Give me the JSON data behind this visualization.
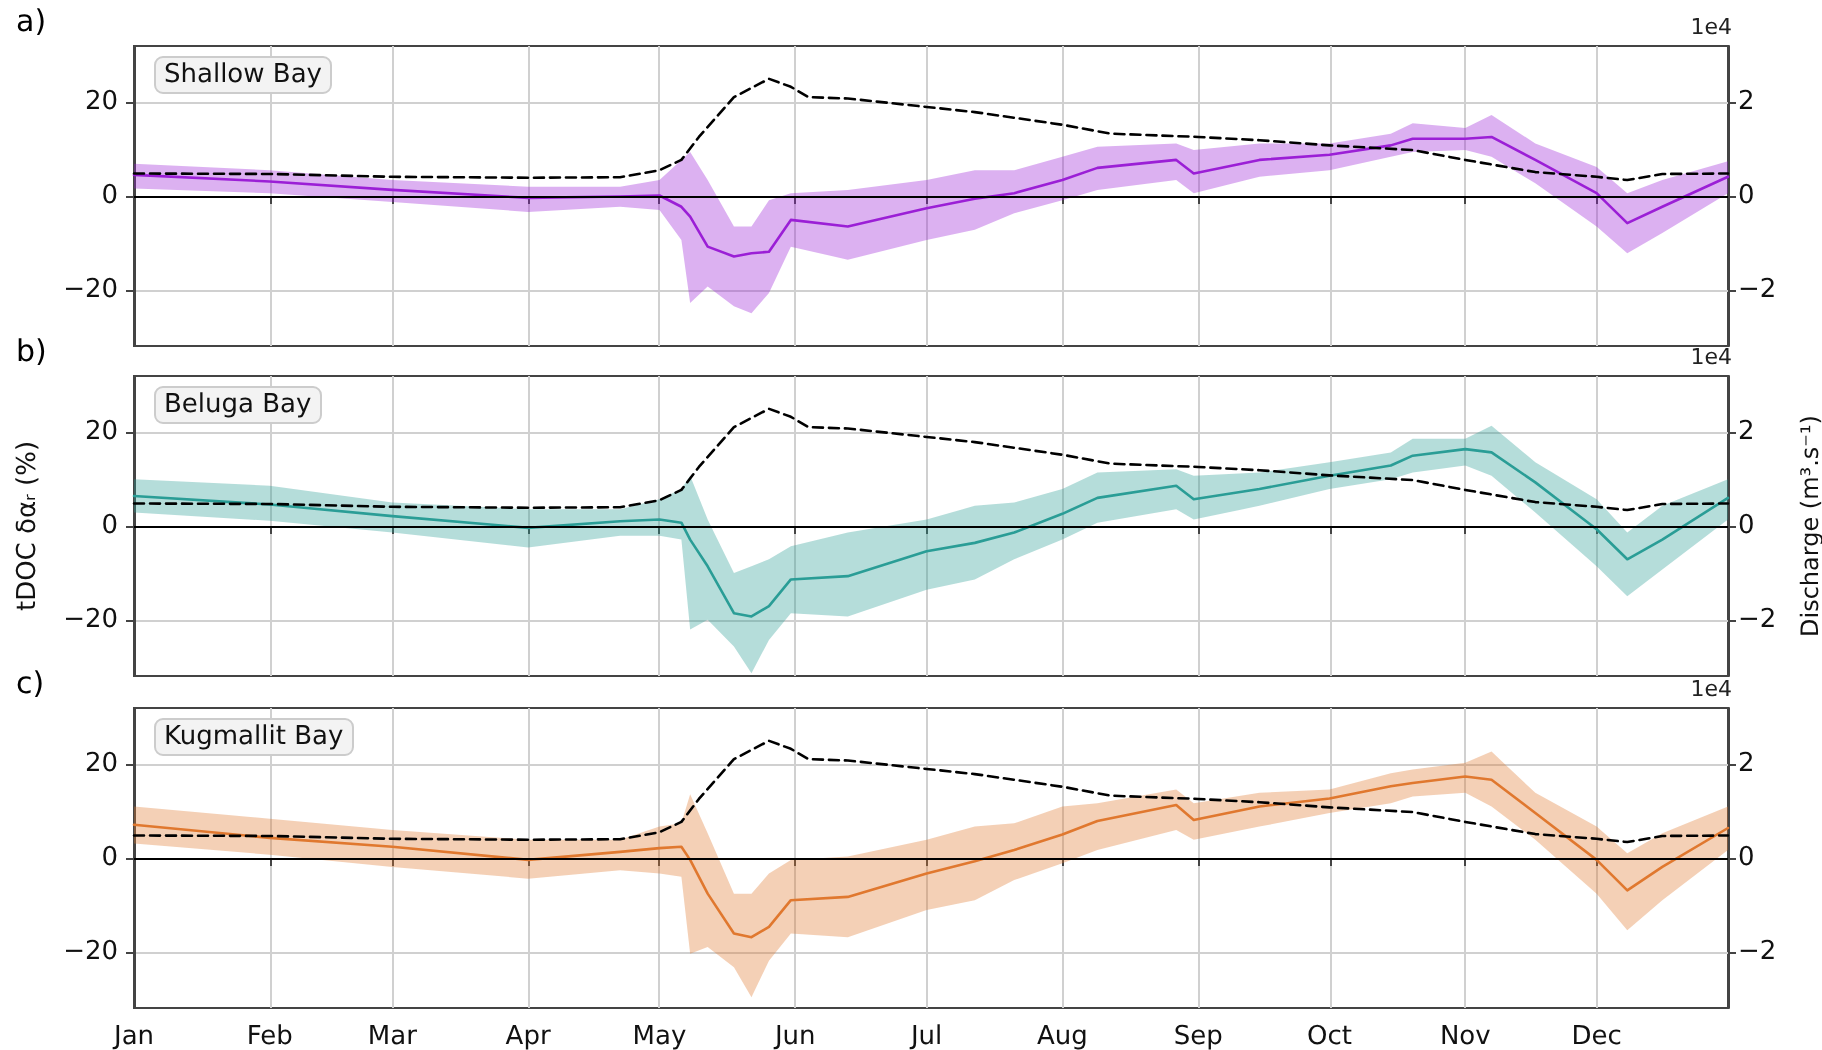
{
  "chart_data": [
    {
      "type": "line",
      "title": "Shallow Bay",
      "annotations": [
        "a)",
        "1e4"
      ],
      "xlim": [
        "--01-01",
        "--12-31"
      ],
      "xticks": [
        {
          "value": "--01-01",
          "label": "Jan"
        },
        {
          "value": "--02-01",
          "label": "Feb"
        },
        {
          "value": "--03-01",
          "label": "Mar"
        },
        {
          "value": "--04-01",
          "label": "Apr"
        },
        {
          "value": "--05-01",
          "label": "May"
        },
        {
          "value": "--06-01",
          "label": "Jun"
        },
        {
          "value": "--07-01",
          "label": "Jul"
        },
        {
          "value": "--08-01",
          "label": "Aug"
        },
        {
          "value": "--09-01",
          "label": "Sep"
        },
        {
          "value": "--10-01",
          "label": "Oct"
        },
        {
          "value": "--11-01",
          "label": "Nov"
        },
        {
          "value": "--12-01",
          "label": "Dec"
        }
      ],
      "ylim": [
        -32,
        32
      ],
      "yticks": [
        -20,
        0,
        20
      ],
      "y2lim": [
        -3.2,
        3.2
      ],
      "y2ticks": [
        -2,
        0,
        2
      ],
      "grid": true,
      "marker": "none",
      "tick_labels": "y",
      "ref_lines": [
        {
          "axis": "y",
          "value": 0,
          "color": "#000000"
        }
      ],
      "x": [
        "--01-01",
        "--02-01",
        "--03-01",
        "--04-01",
        "--04-22",
        "--05-01",
        "--05-06",
        "--05-08",
        "--05-12",
        "--05-18",
        "--05-22",
        "--05-26",
        "--05-31",
        "--06-13",
        "--07-01",
        "--07-12",
        "--07-21",
        "--08-01",
        "--08-09",
        "--08-27",
        "--08-31",
        "--09-15",
        "--10-01",
        "--10-15",
        "--10-20",
        "--11-01",
        "--11-07",
        "--11-17",
        "--12-01",
        "--12-08",
        "--12-16",
        "--12-31"
      ],
      "series": [
        {
          "color": "#9b1fd6",
          "line_style": "solid",
          "values": [
            4.5,
            3.1,
            1.3,
            -0.4,
            -0.1,
            0.1,
            -2.3,
            -4.4,
            -10.8,
            -12.9,
            -12.2,
            -11.9,
            -5.1,
            -6.5,
            -2.6,
            -0.6,
            0.6,
            3.4,
            6.0,
            7.7,
            4.8,
            7.7,
            8.8,
            10.8,
            12.2,
            12.2,
            12.6,
            7.7,
            0.6,
            -5.8,
            -2.3,
            4.1
          ],
          "upper": [
            6.9,
            5.5,
            3.4,
            2.0,
            2.0,
            3.4,
            7.7,
            9.4,
            3.4,
            -6.5,
            -6.5,
            -0.9,
            0.6,
            1.3,
            3.4,
            5.5,
            5.5,
            8.4,
            10.5,
            11.2,
            9.8,
            11.2,
            11.2,
            13.3,
            15.5,
            14.5,
            17.3,
            11.2,
            6.2,
            0.6,
            3.4,
            7.4
          ],
          "lower": [
            1.6,
            0.6,
            -1.3,
            -3.4,
            -2.3,
            -3.0,
            -9.4,
            -22.8,
            -19.3,
            -23.5,
            -25.0,
            -20.7,
            -10.8,
            -13.6,
            -9.4,
            -7.2,
            -3.7,
            -0.9,
            1.3,
            3.4,
            0.6,
            4.1,
            5.5,
            8.4,
            9.4,
            9.8,
            8.4,
            2.7,
            -6.5,
            -12.2,
            -7.9,
            0.6
          ]
        },
        {
          "color": "#000000",
          "line_style": "dashed",
          "axis": "y2",
          "x": [
            "--01-01",
            "--02-01",
            "--03-01",
            "--04-01",
            "--04-22",
            "--05-01",
            "--05-06",
            "--05-10",
            "--05-18",
            "--05-26",
            "--05-31",
            "--06-04",
            "--06-13",
            "--07-01",
            "--07-12",
            "--08-01",
            "--08-12",
            "--09-01",
            "--09-15",
            "--10-01",
            "--10-20",
            "--11-01",
            "--11-17",
            "--12-01",
            "--12-08",
            "--12-16",
            "--12-31"
          ],
          "values": [
            0.48,
            0.47,
            0.41,
            0.39,
            0.4,
            0.55,
            0.77,
            1.26,
            2.11,
            2.5,
            2.33,
            2.11,
            2.08,
            1.9,
            1.79,
            1.52,
            1.33,
            1.26,
            1.19,
            1.08,
            0.98,
            0.77,
            0.51,
            0.41,
            0.34,
            0.47,
            0.48
          ]
        }
      ]
    },
    {
      "type": "line",
      "title": "Beluga Bay",
      "ylabel": "tDOC δαᵣ (%)",
      "y2label": "Discharge (m³.s⁻¹)",
      "annotations": [
        "b)",
        "1e4"
      ],
      "xlim": [
        "--01-01",
        "--12-31"
      ],
      "xticks": [
        {
          "value": "--01-01",
          "label": "Jan"
        },
        {
          "value": "--02-01",
          "label": "Feb"
        },
        {
          "value": "--03-01",
          "label": "Mar"
        },
        {
          "value": "--04-01",
          "label": "Apr"
        },
        {
          "value": "--05-01",
          "label": "May"
        },
        {
          "value": "--06-01",
          "label": "Jun"
        },
        {
          "value": "--07-01",
          "label": "Jul"
        },
        {
          "value": "--08-01",
          "label": "Aug"
        },
        {
          "value": "--09-01",
          "label": "Sep"
        },
        {
          "value": "--10-01",
          "label": "Oct"
        },
        {
          "value": "--11-01",
          "label": "Nov"
        },
        {
          "value": "--12-01",
          "label": "Dec"
        }
      ],
      "ylim": [
        -32,
        32
      ],
      "yticks": [
        -20,
        0,
        20
      ],
      "y2lim": [
        -3.2,
        3.2
      ],
      "y2ticks": [
        -2,
        0,
        2
      ],
      "grid": true,
      "marker": "none",
      "tick_labels": "y",
      "ref_lines": [
        {
          "axis": "y",
          "value": 0,
          "color": "#000000"
        }
      ],
      "x": [
        "--01-01",
        "--02-01",
        "--03-01",
        "--04-01",
        "--04-22",
        "--05-01",
        "--05-06",
        "--05-08",
        "--05-12",
        "--05-18",
        "--05-22",
        "--05-26",
        "--05-31",
        "--06-13",
        "--07-01",
        "--07-12",
        "--07-21",
        "--08-01",
        "--08-09",
        "--08-27",
        "--08-31",
        "--09-15",
        "--10-01",
        "--10-15",
        "--10-20",
        "--11-01",
        "--11-07",
        "--11-17",
        "--12-01",
        "--12-08",
        "--12-16",
        "--12-31"
      ],
      "series": [
        {
          "color": "#2a9d96",
          "line_style": "solid",
          "values": [
            6.4,
            4.6,
            2.1,
            -0.4,
            1.0,
            1.4,
            0.7,
            -2.9,
            -8.6,
            -18.6,
            -19.3,
            -17.1,
            -11.4,
            -10.7,
            -5.4,
            -3.6,
            -1.4,
            2.6,
            6.0,
            8.6,
            5.7,
            7.9,
            10.7,
            12.9,
            15.0,
            16.4,
            15.7,
            9.3,
            -0.7,
            -7.1,
            -2.9,
            6.0
          ],
          "upper": [
            10.0,
            8.6,
            5.0,
            3.6,
            3.6,
            5.7,
            7.9,
            10.7,
            1.4,
            -10.0,
            -8.6,
            -7.1,
            -4.3,
            -1.4,
            1.4,
            4.3,
            5.0,
            7.9,
            11.4,
            12.1,
            10.7,
            11.4,
            13.6,
            15.7,
            18.6,
            18.6,
            21.4,
            13.6,
            5.7,
            -1.4,
            4.3,
            10.0
          ],
          "lower": [
            2.9,
            1.1,
            -1.4,
            -4.6,
            -2.1,
            -2.1,
            -2.9,
            -22.1,
            -20.0,
            -25.7,
            -31.4,
            -24.3,
            -18.6,
            -19.3,
            -13.6,
            -11.4,
            -7.1,
            -2.9,
            0.7,
            3.6,
            1.4,
            4.3,
            7.9,
            10.0,
            11.4,
            12.9,
            10.7,
            2.9,
            -8.6,
            -15.0,
            -9.3,
            1.4
          ]
        },
        {
          "color": "#000000",
          "line_style": "dashed",
          "axis": "y2",
          "x": [
            "--01-01",
            "--02-01",
            "--03-01",
            "--04-01",
            "--04-22",
            "--05-01",
            "--05-06",
            "--05-10",
            "--05-18",
            "--05-26",
            "--05-31",
            "--06-04",
            "--06-13",
            "--07-01",
            "--07-12",
            "--08-01",
            "--08-12",
            "--09-01",
            "--09-15",
            "--10-01",
            "--10-20",
            "--11-01",
            "--11-17",
            "--12-01",
            "--12-08",
            "--12-16",
            "--12-31"
          ],
          "values": [
            0.48,
            0.47,
            0.41,
            0.39,
            0.4,
            0.55,
            0.77,
            1.26,
            2.11,
            2.5,
            2.33,
            2.11,
            2.08,
            1.9,
            1.79,
            1.52,
            1.33,
            1.26,
            1.19,
            1.08,
            0.98,
            0.77,
            0.51,
            0.41,
            0.34,
            0.47,
            0.48
          ]
        }
      ]
    },
    {
      "type": "line",
      "title": "Kugmallit Bay",
      "annotations": [
        "c)",
        "1e4"
      ],
      "xlim": [
        "--01-01",
        "--12-31"
      ],
      "xticks": [
        {
          "value": "--01-01",
          "label": "Jan"
        },
        {
          "value": "--02-01",
          "label": "Feb"
        },
        {
          "value": "--03-01",
          "label": "Mar"
        },
        {
          "value": "--04-01",
          "label": "Apr"
        },
        {
          "value": "--05-01",
          "label": "May"
        },
        {
          "value": "--06-01",
          "label": "Jun"
        },
        {
          "value": "--07-01",
          "label": "Jul"
        },
        {
          "value": "--08-01",
          "label": "Aug"
        },
        {
          "value": "--09-01",
          "label": "Sep"
        },
        {
          "value": "--10-01",
          "label": "Oct"
        },
        {
          "value": "--11-01",
          "label": "Nov"
        },
        {
          "value": "--12-01",
          "label": "Dec"
        }
      ],
      "ylim": [
        -32,
        32
      ],
      "yticks": [
        -20,
        0,
        20
      ],
      "y2lim": [
        -3.2,
        3.2
      ],
      "y2ticks": [
        -2,
        0,
        2
      ],
      "grid": true,
      "marker": "none",
      "ref_lines": [
        {
          "axis": "y",
          "value": 0,
          "color": "#000000"
        }
      ],
      "x": [
        "--01-01",
        "--02-01",
        "--03-01",
        "--04-01",
        "--04-22",
        "--05-01",
        "--05-06",
        "--05-08",
        "--05-12",
        "--05-18",
        "--05-22",
        "--05-26",
        "--05-31",
        "--06-13",
        "--07-01",
        "--07-12",
        "--07-21",
        "--08-01",
        "--08-09",
        "--08-27",
        "--08-31",
        "--09-15",
        "--10-01",
        "--10-15",
        "--10-20",
        "--11-01",
        "--11-07",
        "--11-17",
        "--12-01",
        "--12-08",
        "--12-16",
        "--12-31"
      ],
      "series": [
        {
          "color": "#e0782f",
          "line_style": "solid",
          "values": [
            7.1,
            4.3,
            2.4,
            -0.4,
            1.3,
            2.1,
            2.4,
            -0.4,
            -7.6,
            -16.1,
            -16.9,
            -14.7,
            -9.0,
            -8.3,
            -3.3,
            -0.7,
            1.7,
            5.0,
            7.9,
            11.3,
            8.1,
            11.0,
            12.7,
            15.3,
            16.0,
            17.4,
            16.7,
            9.6,
            -0.4,
            -6.9,
            -1.9,
            6.4
          ],
          "upper": [
            11.0,
            8.4,
            6.0,
            3.9,
            3.9,
            6.7,
            7.4,
            13.6,
            5.3,
            -7.6,
            -7.6,
            -3.3,
            -0.4,
            0.3,
            3.9,
            6.7,
            7.4,
            11.0,
            11.7,
            14.6,
            11.7,
            13.9,
            14.6,
            18.1,
            18.9,
            20.3,
            22.7,
            13.9,
            6.7,
            1.0,
            5.3,
            11.0
          ],
          "lower": [
            3.1,
            0.7,
            -1.9,
            -4.4,
            -2.6,
            -3.3,
            -4.0,
            -20.4,
            -19.0,
            -23.3,
            -29.7,
            -21.9,
            -16.1,
            -16.9,
            -11.1,
            -9.0,
            -4.7,
            -1.1,
            1.7,
            6.0,
            3.9,
            6.7,
            9.6,
            11.7,
            13.1,
            13.9,
            11.0,
            3.9,
            -7.6,
            -15.4,
            -9.0,
            1.7
          ]
        },
        {
          "color": "#000000",
          "line_style": "dashed",
          "axis": "y2",
          "x": [
            "--01-01",
            "--02-01",
            "--03-01",
            "--04-01",
            "--04-22",
            "--05-01",
            "--05-06",
            "--05-10",
            "--05-18",
            "--05-26",
            "--05-31",
            "--06-04",
            "--06-13",
            "--07-01",
            "--07-12",
            "--08-01",
            "--08-12",
            "--09-01",
            "--09-15",
            "--10-01",
            "--10-20",
            "--11-01",
            "--11-17",
            "--12-01",
            "--12-08",
            "--12-16",
            "--12-31"
          ],
          "values": [
            0.48,
            0.47,
            0.41,
            0.39,
            0.4,
            0.55,
            0.77,
            1.26,
            2.11,
            2.5,
            2.33,
            2.11,
            2.08,
            1.9,
            1.79,
            1.52,
            1.33,
            1.26,
            1.19,
            1.08,
            0.98,
            0.77,
            0.51,
            0.41,
            0.34,
            0.47,
            0.48
          ]
        }
      ]
    }
  ]
}
